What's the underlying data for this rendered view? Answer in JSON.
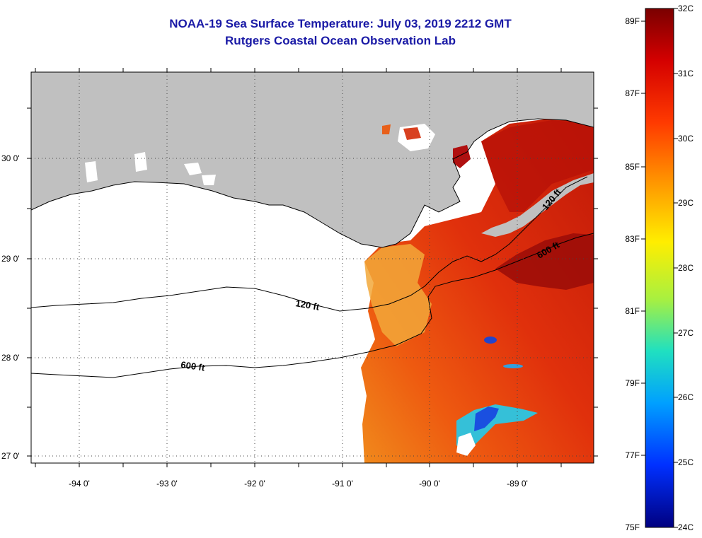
{
  "title": "NOAA-19 Sea Surface Temperature:  July 03, 2019 2212 GMT",
  "subtitle": "Rutgers Coastal Ocean Observation Lab",
  "lat_labels": [
    "30 0'",
    "29 0'",
    "28 0'",
    "27 0'"
  ],
  "lon_labels": [
    "-94 0'",
    "-93 0'",
    "-92 0'",
    "-91 0'",
    "-90 0'",
    "-89 0'"
  ],
  "contour_labels": [
    "120 ft",
    "600 ft",
    "120 ft",
    "600 ft"
  ],
  "colorbar": {
    "f_labels": [
      "89F",
      "87F",
      "85F",
      "83F",
      "81F",
      "79F",
      "77F",
      "75F"
    ],
    "c_labels": [
      "32C",
      "31C",
      "30C",
      "29C",
      "28C",
      "27C",
      "26C",
      "25C",
      "24C"
    ]
  },
  "colors": {
    "land": "#c0c0c0",
    "title": "#1a1aa6",
    "hot": "#8b0000",
    "cold": "#000080"
  }
}
